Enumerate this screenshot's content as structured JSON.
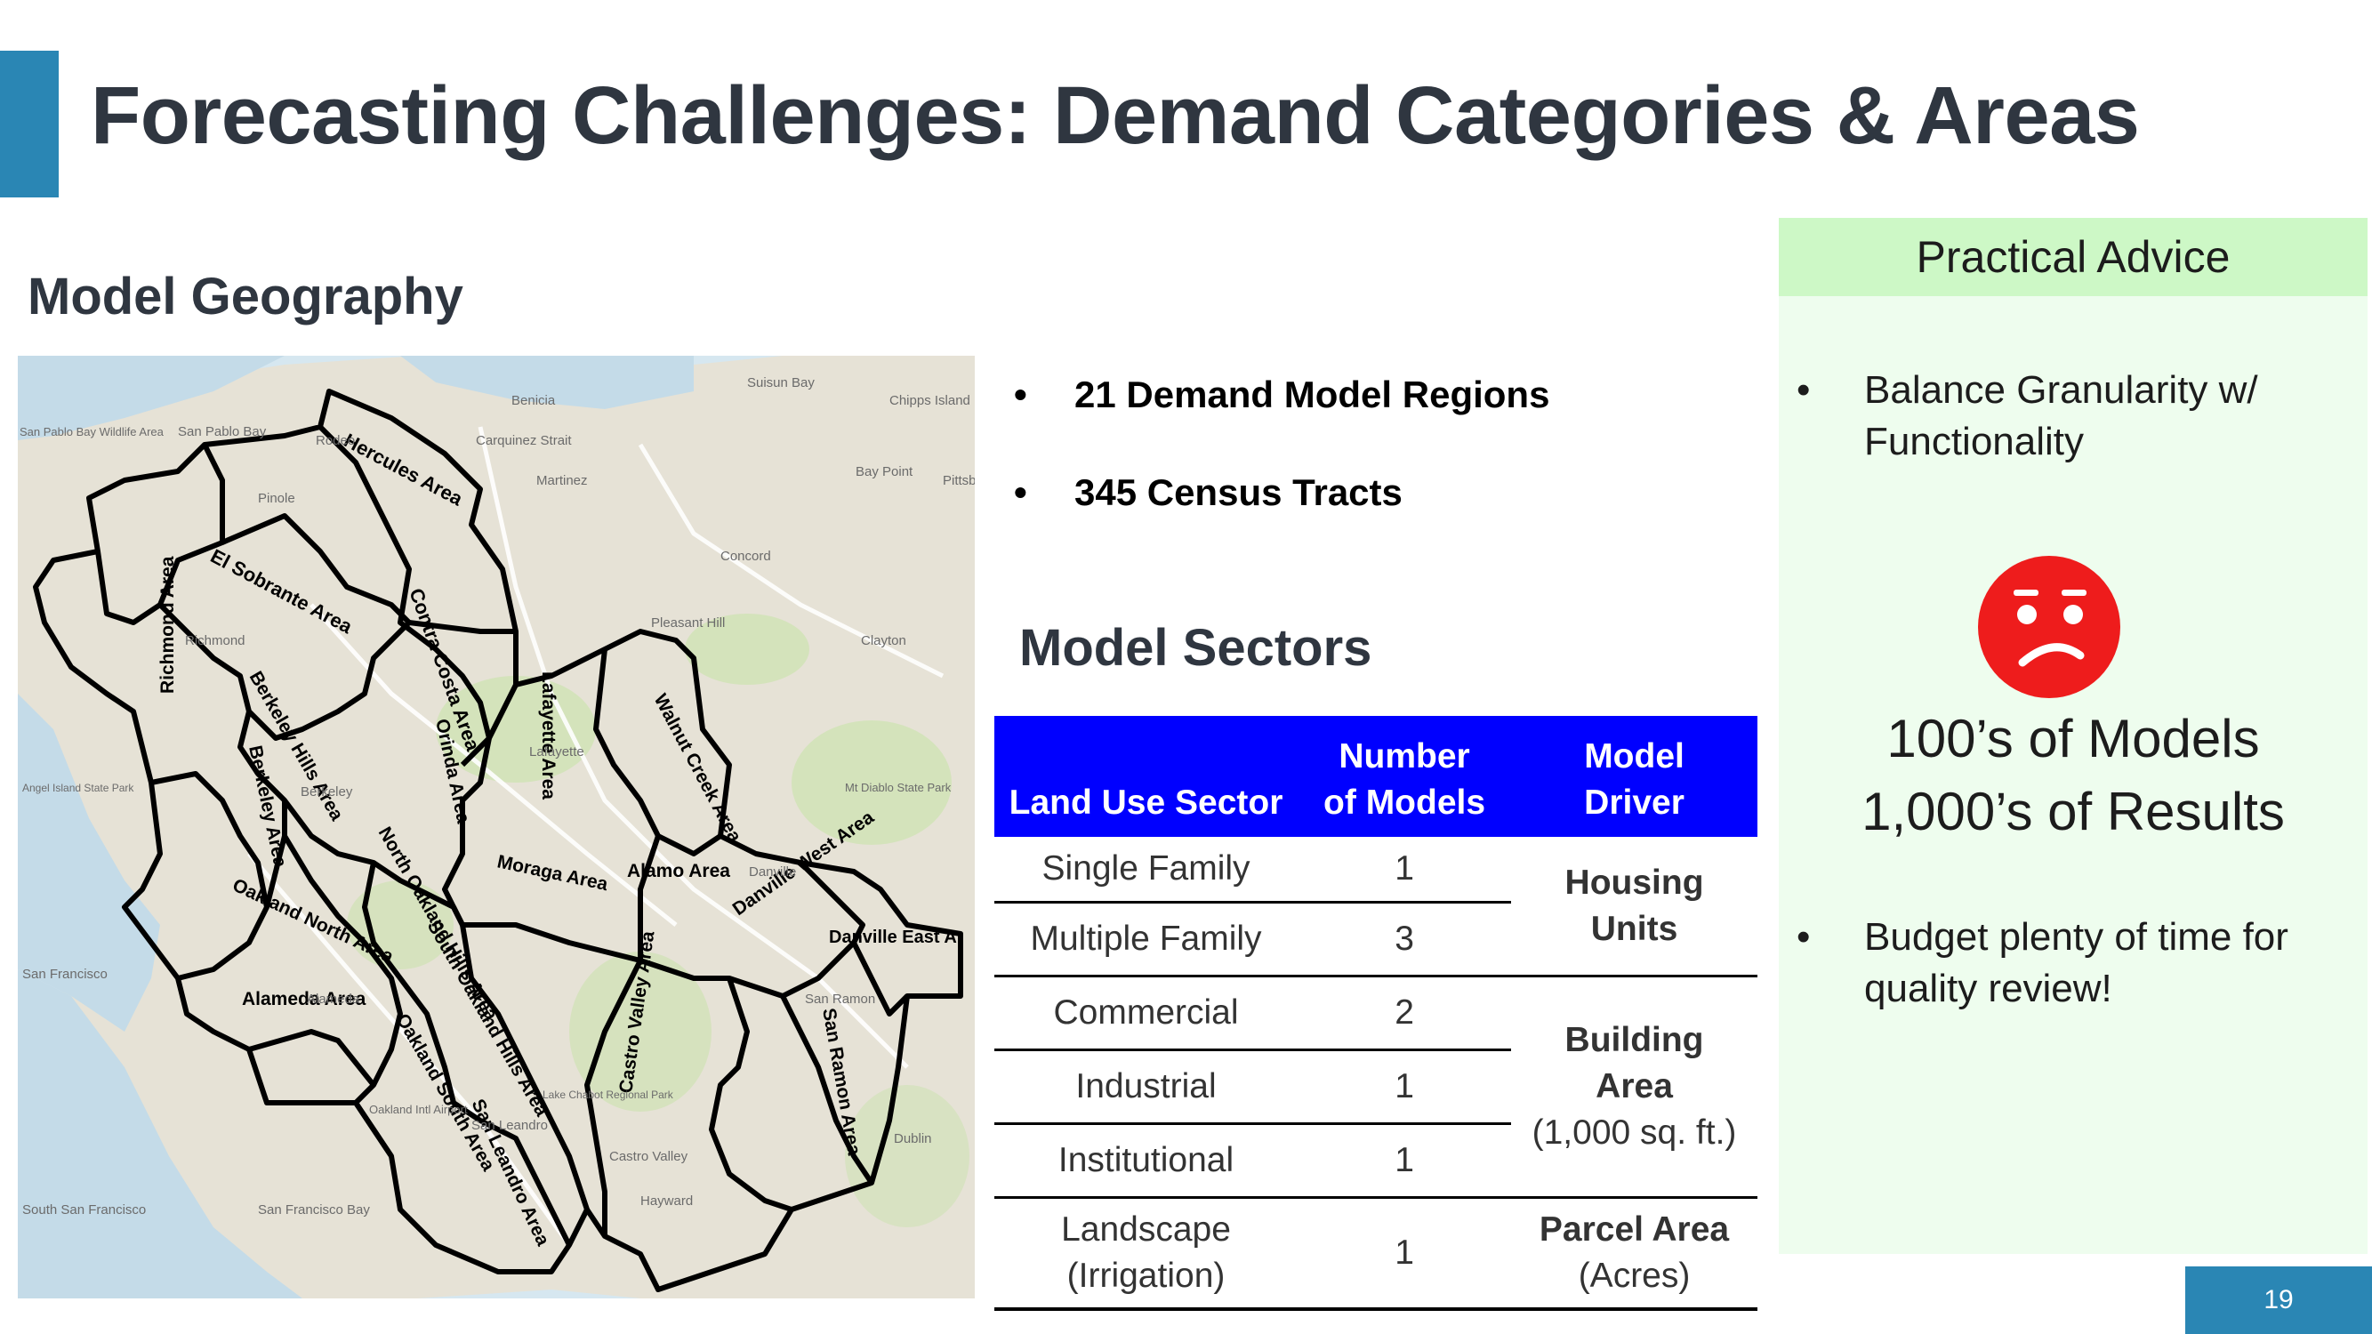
{
  "slide": {
    "title": "Forecasting Challenges: Demand Categories & Areas",
    "geography_heading": "Model Geography",
    "page_number": "19"
  },
  "map": {
    "regions": [
      "Hercules Area",
      "Richmond Area",
      "El Sobrante Area",
      "Contra Costa Area",
      "Lafayette Area",
      "Walnut Creek Area",
      "Berkeley Hills Area",
      "Berkeley Area",
      "Orinda Area",
      "Moraga Area",
      "Alamo Area",
      "Danville West Area",
      "Danville East A",
      "North Oakland Hills Area",
      "Oakland North Area",
      "South Oakland Hills Area",
      "Alameda Area",
      "Oakland South Area",
      "San Ramon Area",
      "Castro Valley Area",
      "San Leandro Area"
    ],
    "places": [
      "Benicia",
      "Suisun Bay",
      "Chipps Island",
      "San Pablo Bay",
      "San Pablo Bay Wildlife Area",
      "Rodeo",
      "Carquinez Strait",
      "Martinez",
      "Bay Point",
      "Pittsburg",
      "Pinole",
      "Concord",
      "Pleasant Hill",
      "Clayton",
      "Richmond",
      "Lafayette",
      "Berkeley",
      "Mt Diablo State Park",
      "Danville",
      "San Francisco",
      "Alameda",
      "San Ramon",
      "Dublin",
      "San Leandro",
      "Castro Valley",
      "Hayward",
      "Oakland Intl Airport",
      "San Francisco Bay",
      "South San Francisco",
      "Angel Island State Park",
      "Lake Chabot Regional Park"
    ]
  },
  "bullets": {
    "items": [
      "21 Demand Model Regions",
      "345 Census Tracts"
    ],
    "bullet_char": "•"
  },
  "sectors": {
    "heading": "Model Sectors",
    "columns": [
      "Land Use Sector",
      "Number of Models",
      "Model Driver"
    ],
    "columns_split": {
      "c1": "Land Use Sector",
      "c2a": "Number",
      "c2b": "of Models",
      "c3a": "Model",
      "c3b": "Driver"
    },
    "rows": [
      {
        "sector": "Single Family",
        "models": "1"
      },
      {
        "sector": "Multiple Family",
        "models": "3"
      },
      {
        "sector": "Commercial",
        "models": "2"
      },
      {
        "sector": "Industrial",
        "models": "1"
      },
      {
        "sector": "Institutional",
        "models": "1"
      },
      {
        "sector_a": "Landscape",
        "sector_b": "(Irrigation)",
        "models": "1"
      }
    ],
    "drivers": {
      "housing_a": "Housing",
      "housing_b": "Units",
      "building_a": "Building",
      "building_b": "Area",
      "building_c": "(1,000 sq. ft.)",
      "parcel_a": "Parcel Area",
      "parcel_b": "(Acres)"
    },
    "header_color": "#0000ff"
  },
  "advice": {
    "heading": "Practical Advice",
    "bullet1_a": "Balance Granularity w/",
    "bullet1_b": "Functionality",
    "big_a": "100’s of Models",
    "big_b": "1,000’s of Results",
    "bullet2_a": "Budget plenty of time for",
    "bullet2_b": "quality review!",
    "face_icon": "confused-face-icon",
    "face_color": "#ee1c1c"
  },
  "colors": {
    "accent": "#2a86b4",
    "advice_head": "#cdf8c6",
    "advice_body": "#eefdee"
  }
}
